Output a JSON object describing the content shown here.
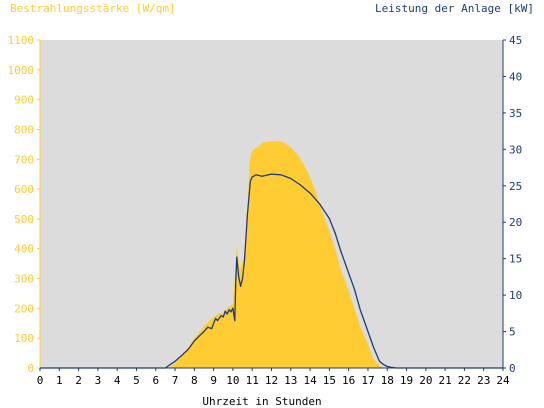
{
  "chart_data": {
    "type": "area",
    "left_axis_title": "Bestrahlungsstärke [W/qm]",
    "right_axis_title": "Leistung der Anlage [kW]",
    "xlabel": "Uhrzeit in Stunden",
    "x_ticks": [
      "0",
      "1",
      "2",
      "3",
      "4",
      "5",
      "6",
      "7",
      "8",
      "9",
      "10",
      "11",
      "12",
      "13",
      "14",
      "15",
      "16",
      "17",
      "18",
      "19",
      "20",
      "21",
      "22",
      "23",
      "24"
    ],
    "y_left_ticks": [
      "0",
      "100",
      "200",
      "300",
      "400",
      "500",
      "600",
      "700",
      "800",
      "900",
      "1000",
      "1100"
    ],
    "y_right_ticks": [
      "0",
      "5",
      "10",
      "15",
      "20",
      "25",
      "30",
      "35",
      "40",
      "45"
    ],
    "xlim": [
      0,
      24
    ],
    "ylim_left": [
      0,
      1100
    ],
    "ylim_right": [
      0,
      45
    ],
    "grid": false,
    "colors": {
      "plot_background": "#dcdcdc",
      "irradiance_fill": "#ffcc33",
      "power_line": "#1f3a7a",
      "left_axis": "#ffcc33",
      "right_axis": "#1f3a7a"
    },
    "series": [
      {
        "name": "Bestrahlungsstärke [W/qm]",
        "axis": "left",
        "style": "area",
        "x": [
          0,
          6.5,
          6.8,
          7.0,
          7.5,
          8.0,
          8.5,
          9.0,
          9.3,
          9.5,
          9.7,
          10.0,
          10.1,
          10.2,
          10.35,
          10.5,
          10.7,
          10.85,
          10.95,
          11.1,
          11.3,
          11.5,
          12.0,
          12.5,
          12.9,
          13.3,
          13.7,
          14.0,
          14.3,
          14.6,
          15.0,
          15.3,
          15.6,
          16.0,
          16.3,
          16.6,
          17.0,
          17.3,
          17.6,
          17.85,
          18.0,
          18.3,
          18.6,
          24
        ],
        "y": [
          0,
          0,
          5,
          15,
          50,
          100,
          140,
          170,
          185,
          180,
          200,
          215,
          300,
          410,
          330,
          355,
          420,
          680,
          720,
          735,
          740,
          755,
          760,
          760,
          745,
          720,
          680,
          640,
          590,
          530,
          460,
          400,
          330,
          260,
          200,
          140,
          80,
          30,
          8,
          0,
          0,
          0,
          0,
          0
        ]
      },
      {
        "name": "Leistung der Anlage [kW]",
        "axis": "right",
        "style": "line",
        "x": [
          0,
          6.5,
          6.7,
          7.0,
          7.3,
          7.7,
          8.0,
          8.3,
          8.5,
          8.7,
          8.9,
          9.0,
          9.1,
          9.2,
          9.4,
          9.5,
          9.6,
          9.7,
          9.8,
          9.9,
          10.0,
          10.1,
          10.15,
          10.2,
          10.3,
          10.4,
          10.5,
          10.6,
          10.75,
          10.9,
          11.0,
          11.2,
          11.5,
          12.0,
          12.5,
          13.0,
          13.5,
          14.0,
          14.5,
          15.0,
          15.3,
          15.6,
          16.0,
          16.3,
          16.6,
          17.0,
          17.3,
          17.6,
          17.8,
          18.0,
          18.2,
          18.5,
          24
        ],
        "y": [
          0,
          0,
          0.4,
          0.9,
          1.6,
          2.6,
          3.7,
          4.5,
          5.0,
          5.6,
          5.4,
          6.1,
          6.8,
          6.5,
          7.2,
          7.0,
          7.8,
          7.4,
          8.0,
          7.7,
          8.2,
          6.5,
          12.0,
          15.2,
          12.5,
          11.2,
          12.3,
          14.8,
          21.0,
          25.6,
          26.2,
          26.5,
          26.3,
          26.6,
          26.5,
          26.0,
          25.1,
          24.0,
          22.5,
          20.5,
          18.5,
          16.0,
          13.0,
          10.8,
          8.0,
          5.0,
          2.8,
          0.9,
          0.5,
          0.2,
          0.1,
          0,
          0
        ]
      }
    ]
  }
}
